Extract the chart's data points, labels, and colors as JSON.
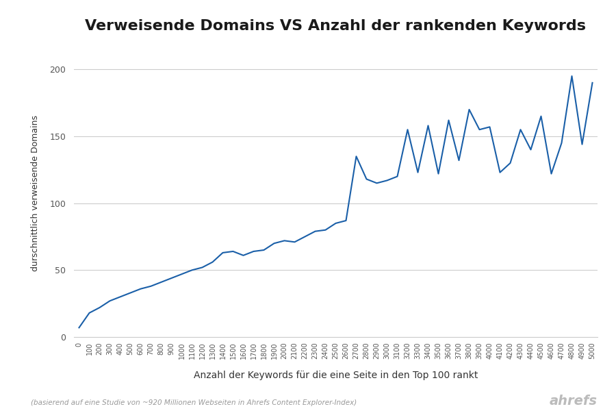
{
  "title": "Verweisende Domains VS Anzahl der rankenden Keywords",
  "xlabel": "Anzahl der Keywords für die eine Seite in den Top 100 rankt",
  "ylabel": "durschnittlich verweisende Domains",
  "footnote": "(basierend auf eine Studie von ~920 Millionen Webseiten in Ahrefs Content Explorer-Index)",
  "watermark": "ahrefs",
  "line_color": "#1a5fa8",
  "bg_color": "#ffffff",
  "grid_color": "#cccccc",
  "x": [
    0,
    100,
    200,
    300,
    400,
    500,
    600,
    700,
    800,
    900,
    1000,
    1100,
    1200,
    1300,
    1400,
    1500,
    1600,
    1700,
    1800,
    1900,
    2000,
    2100,
    2200,
    2300,
    2400,
    2500,
    2600,
    2700,
    2800,
    2900,
    3000,
    3100,
    3200,
    3300,
    3400,
    3500,
    3600,
    3700,
    3800,
    3900,
    4000,
    4100,
    4200,
    4300,
    4400,
    4500,
    4600,
    4700,
    4800,
    4900,
    5000
  ],
  "y": [
    7,
    18,
    22,
    27,
    30,
    33,
    36,
    38,
    41,
    44,
    47,
    50,
    52,
    56,
    63,
    64,
    61,
    64,
    65,
    70,
    72,
    71,
    75,
    79,
    80,
    85,
    87,
    135,
    118,
    115,
    117,
    120,
    155,
    123,
    158,
    122,
    162,
    132,
    170,
    155,
    157,
    123,
    130,
    155,
    140,
    165,
    122,
    145,
    195,
    144,
    190
  ]
}
